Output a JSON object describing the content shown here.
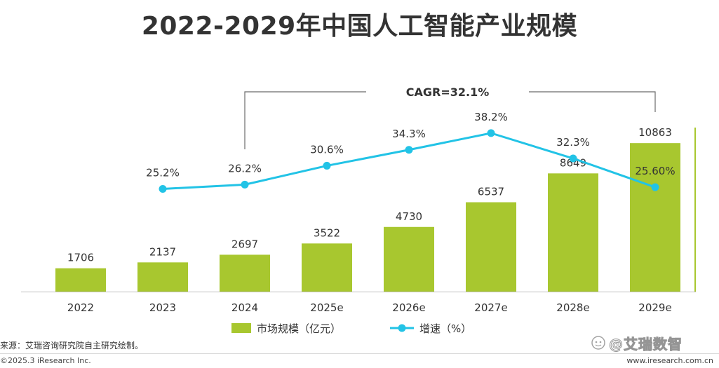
{
  "title": "2022-2029年中国人工智能产业规模",
  "chart_data": {
    "type": "bar",
    "categories": [
      "2022",
      "2023",
      "2024",
      "2025e",
      "2026e",
      "2027e",
      "2028e",
      "2029e"
    ],
    "series": [
      {
        "name": "市场规模（亿元）",
        "type": "bar",
        "values": [
          1706,
          2137,
          2697,
          3522,
          4730,
          6537,
          8649,
          10863
        ],
        "labels": [
          "1706",
          "2137",
          "2697",
          "3522",
          "4730",
          "6537",
          "8649",
          "10863"
        ],
        "color": "#A8C72F"
      },
      {
        "name": "增速（%）",
        "type": "line",
        "x": [
          "2023",
          "2024",
          "2025e",
          "2026e",
          "2027e",
          "2028e",
          "2029e"
        ],
        "values": [
          25.2,
          26.2,
          30.6,
          34.3,
          38.2,
          32.3,
          25.6
        ],
        "labels": [
          "25.2%",
          "26.2%",
          "30.6%",
          "34.3%",
          "38.2%",
          "32.3%",
          "25.60%"
        ],
        "color": "#22C3E6"
      }
    ],
    "annotation": {
      "text": "CAGR=32.1%",
      "from": "2024",
      "to": "2029e"
    },
    "legend_position": "bottom"
  },
  "source": "来源：艾瑞咨询研究院自主研究绘制。",
  "copyright": "©2025.3 iResearch Inc.",
  "website": "www.iresearch.com.cn",
  "watermark": "@艾瑞数智"
}
